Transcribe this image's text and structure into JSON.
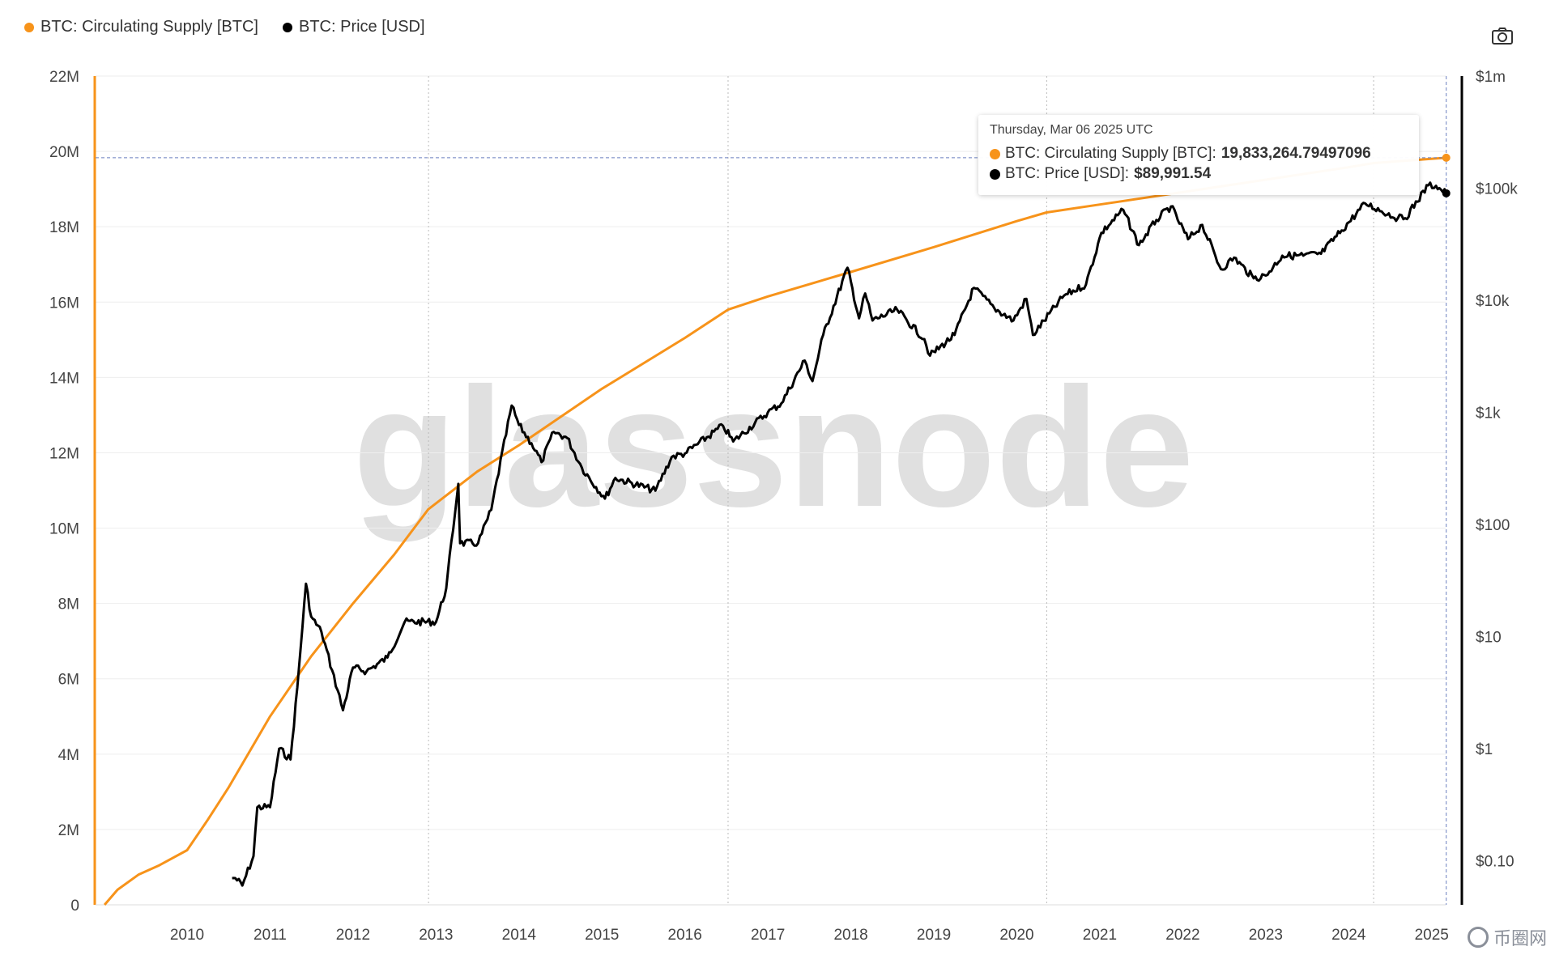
{
  "legend": [
    {
      "label": "BTC: Circulating Supply [BTC]",
      "color": "#f7931a"
    },
    {
      "label": "BTC: Price [USD]",
      "color": "#000000"
    }
  ],
  "toolbar": {
    "camera_icon": "camera-icon"
  },
  "watermark": "glassnode",
  "corner_watermark": "币圈网",
  "tooltip": {
    "date": "Thursday, Mar 06 2025 UTC",
    "supply_label": "BTC: Circulating Supply [BTC]: ",
    "supply_value": "19,833,264.79497096",
    "price_label": "BTC: Price [USD]: ",
    "price_value": "$89,991.54"
  },
  "chart_data": {
    "type": "line",
    "x_ticks": [
      "2010",
      "2011",
      "2012",
      "2013",
      "2014",
      "2015",
      "2016",
      "2017",
      "2018",
      "2019",
      "2020",
      "2021",
      "2022",
      "2023",
      "2024",
      "2025"
    ],
    "left_axis": {
      "ticks": [
        "0",
        "2M",
        "4M",
        "6M",
        "8M",
        "10M",
        "12M",
        "14M",
        "16M",
        "18M",
        "20M",
        "22M"
      ],
      "ylim": [
        0,
        22000000
      ]
    },
    "right_axis": {
      "scale": "log",
      "ticks": [
        "$0.10",
        "$1",
        "$10",
        "$100",
        "$1k",
        "$10k",
        "$100k",
        "$1m"
      ],
      "ylim": [
        0.03,
        1000000
      ]
    },
    "grid": true,
    "legend_position": "top-left",
    "crosshair_x": "2025-03-06",
    "series": [
      {
        "name": "BTC: Circulating Supply [BTC]",
        "color": "#f7931a",
        "axis": "left",
        "points": [
          [
            "2009-01-03",
            0
          ],
          [
            "2009-03-01",
            400000
          ],
          [
            "2009-06-01",
            800000
          ],
          [
            "2009-09-01",
            1050000
          ],
          [
            "2010-01-01",
            1450000
          ],
          [
            "2010-04-01",
            2250000
          ],
          [
            "2010-07-01",
            3100000
          ],
          [
            "2011-01-01",
            5000000
          ],
          [
            "2011-07-01",
            6600000
          ],
          [
            "2012-01-01",
            8000000
          ],
          [
            "2012-07-01",
            9300000
          ],
          [
            "2012-11-28",
            10500000
          ],
          [
            "2013-07-01",
            11500000
          ],
          [
            "2014-01-01",
            12200000
          ],
          [
            "2015-01-01",
            13700000
          ],
          [
            "2016-01-01",
            15050000
          ],
          [
            "2016-07-09",
            15800000
          ],
          [
            "2017-01-01",
            16150000
          ],
          [
            "2018-01-01",
            16800000
          ],
          [
            "2019-01-01",
            17460000
          ],
          [
            "2020-01-01",
            18150000
          ],
          [
            "2020-05-11",
            18380000
          ],
          [
            "2021-01-01",
            18590000
          ],
          [
            "2022-01-01",
            18920000
          ],
          [
            "2023-01-01",
            19250000
          ],
          [
            "2024-01-01",
            19580000
          ],
          [
            "2024-04-20",
            19690000
          ],
          [
            "2025-03-06",
            19833265
          ]
        ]
      },
      {
        "name": "BTC: Price [USD]",
        "color": "#000000",
        "axis": "right",
        "points": [
          [
            "2010-07-18",
            0.07
          ],
          [
            "2010-08-01",
            0.07
          ],
          [
            "2010-09-01",
            0.06
          ],
          [
            "2010-10-20",
            0.11
          ],
          [
            "2010-11-06",
            0.3
          ],
          [
            "2011-01-01",
            0.3
          ],
          [
            "2011-02-10",
            1.0
          ],
          [
            "2011-04-01",
            0.8
          ],
          [
            "2011-05-01",
            3.5
          ],
          [
            "2011-06-08",
            29.6
          ],
          [
            "2011-07-01",
            15
          ],
          [
            "2011-08-15",
            11
          ],
          [
            "2011-10-01",
            5
          ],
          [
            "2011-11-18",
            2.2
          ],
          [
            "2012-01-01",
            5.3
          ],
          [
            "2012-03-01",
            4.9
          ],
          [
            "2012-06-01",
            6.5
          ],
          [
            "2012-08-16",
            13.5
          ],
          [
            "2013-01-01",
            13.5
          ],
          [
            "2013-02-15",
            27
          ],
          [
            "2013-04-09",
            230
          ],
          [
            "2013-04-17",
            68
          ],
          [
            "2013-07-05",
            68
          ],
          [
            "2013-09-01",
            135
          ],
          [
            "2013-11-30",
            1150
          ],
          [
            "2014-01-01",
            770
          ],
          [
            "2014-02-25",
            530
          ],
          [
            "2014-04-10",
            360
          ],
          [
            "2014-06-03",
            670
          ],
          [
            "2014-08-01",
            590
          ],
          [
            "2014-10-05",
            320
          ],
          [
            "2015-01-14",
            170
          ],
          [
            "2015-03-01",
            260
          ],
          [
            "2015-08-24",
            200
          ],
          [
            "2015-11-04",
            400
          ],
          [
            "2016-01-01",
            430
          ],
          [
            "2016-06-17",
            760
          ],
          [
            "2016-08-01",
            550
          ],
          [
            "2017-01-01",
            1000
          ],
          [
            "2017-03-01",
            1200
          ],
          [
            "2017-06-12",
            2900
          ],
          [
            "2017-07-16",
            1900
          ],
          [
            "2017-09-01",
            4900
          ],
          [
            "2017-12-17",
            19500
          ],
          [
            "2018-02-06",
            6900
          ],
          [
            "2018-03-05",
            11500
          ],
          [
            "2018-04-06",
            6600
          ],
          [
            "2018-07-24",
            8200
          ],
          [
            "2018-11-20",
            4500
          ],
          [
            "2018-12-15",
            3200
          ],
          [
            "2019-04-02",
            4900
          ],
          [
            "2019-06-26",
            12900
          ],
          [
            "2019-09-24",
            8500
          ],
          [
            "2019-12-17",
            6600
          ],
          [
            "2020-02-12",
            10300
          ],
          [
            "2020-03-12",
            4900
          ],
          [
            "2020-07-27",
            11000
          ],
          [
            "2020-11-01",
            13800
          ],
          [
            "2021-01-08",
            40000
          ],
          [
            "2021-04-14",
            64000
          ],
          [
            "2021-06-22",
            31000
          ],
          [
            "2021-09-07",
            52000
          ],
          [
            "2021-11-10",
            68700
          ],
          [
            "2022-01-24",
            35000
          ],
          [
            "2022-03-28",
            47000
          ],
          [
            "2022-06-18",
            18900
          ],
          [
            "2022-08-15",
            24000
          ],
          [
            "2022-11-09",
            15700
          ],
          [
            "2023-01-01",
            16600
          ],
          [
            "2023-03-15",
            25000
          ],
          [
            "2023-06-15",
            25000
          ],
          [
            "2023-09-01",
            26000
          ],
          [
            "2023-12-01",
            42000
          ],
          [
            "2024-03-14",
            73000
          ],
          [
            "2024-08-05",
            54000
          ],
          [
            "2024-09-06",
            54000
          ],
          [
            "2024-12-17",
            106000
          ],
          [
            "2025-01-20",
            105000
          ],
          [
            "2025-03-06",
            89991.54
          ]
        ]
      }
    ]
  }
}
